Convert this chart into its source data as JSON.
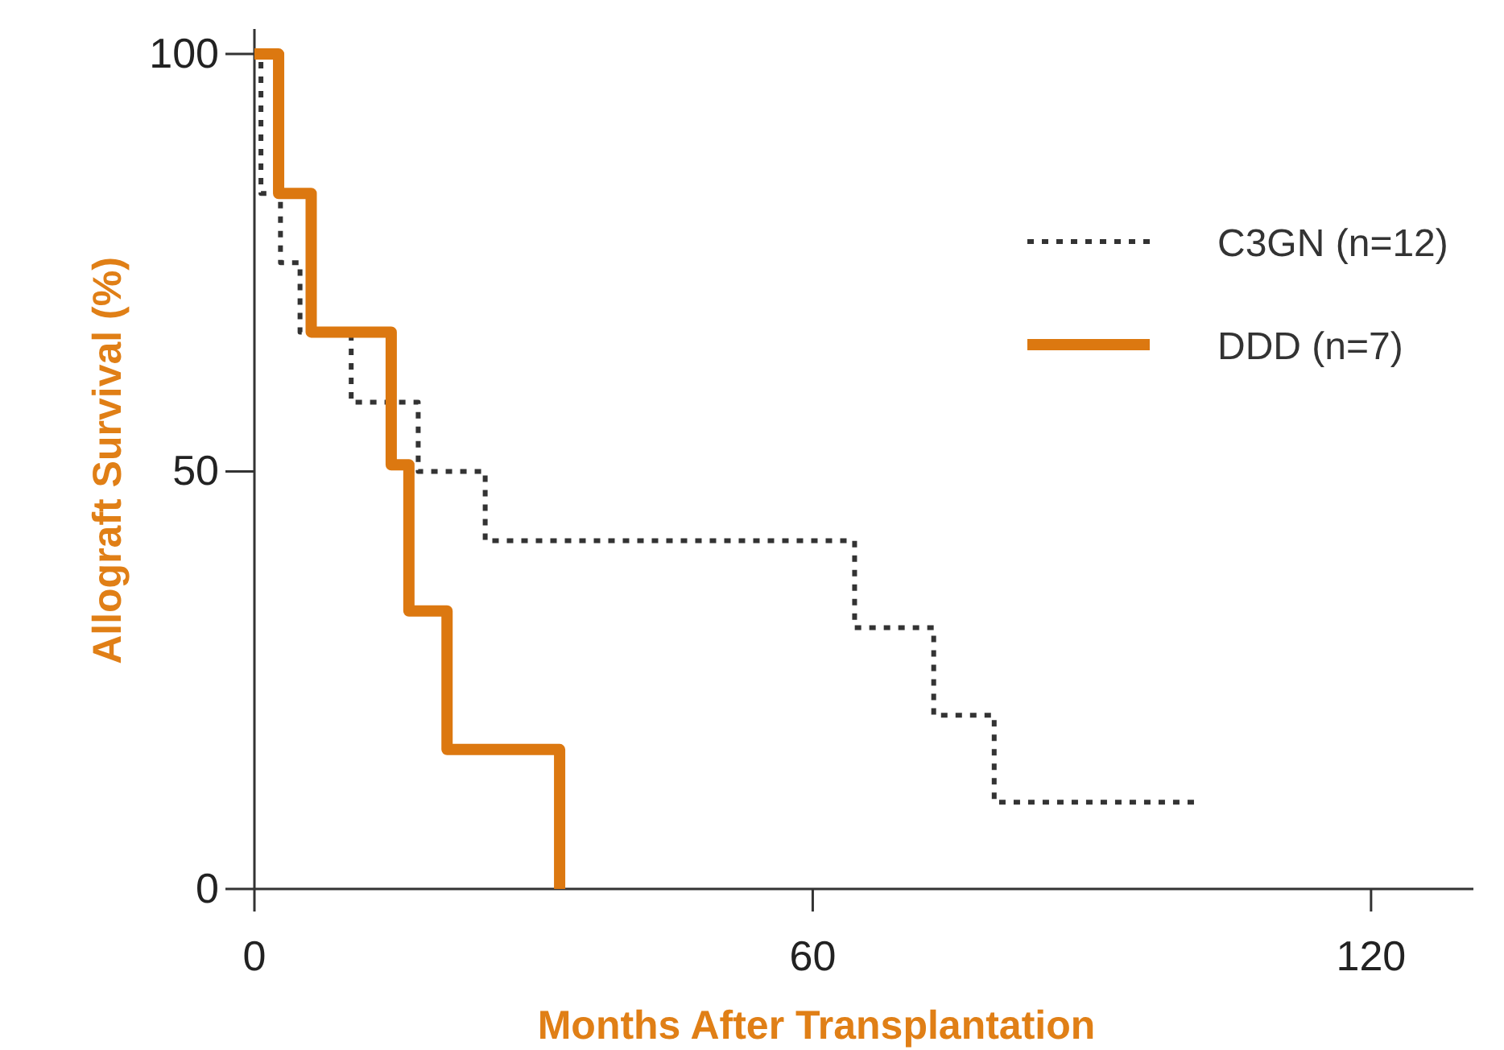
{
  "chart_data": {
    "type": "step",
    "xlabel": "Months After Transplantation",
    "ylabel": "Allograft Survival (%)",
    "xlim": [
      0,
      131
    ],
    "ylim": [
      0,
      103
    ],
    "xticks": [
      0,
      60,
      120
    ],
    "yticks": [
      0,
      50,
      100
    ],
    "legend": "top right",
    "grid": false,
    "series": [
      {
        "name": "C3GN (n=12)",
        "color": "#333333",
        "line_style": "dotted",
        "x": [
          0,
          0.7,
          2.8,
          4.9,
          10.4,
          17.6,
          24.8,
          64.5,
          73,
          79.5,
          101.5
        ],
        "values": [
          100,
          83.3,
          75,
          66.7,
          58.3,
          50,
          41.7,
          31.3,
          20.8,
          10.4,
          10.4
        ]
      },
      {
        "name": "DDD (n=7)",
        "color": "#dc7810",
        "line_style": "solid",
        "x": [
          0,
          2.6,
          6.1,
          14.7,
          16.6,
          20.7,
          32.8
        ],
        "values": [
          100,
          83.3,
          66.7,
          50.8,
          33.3,
          16.7,
          0
        ]
      }
    ]
  }
}
